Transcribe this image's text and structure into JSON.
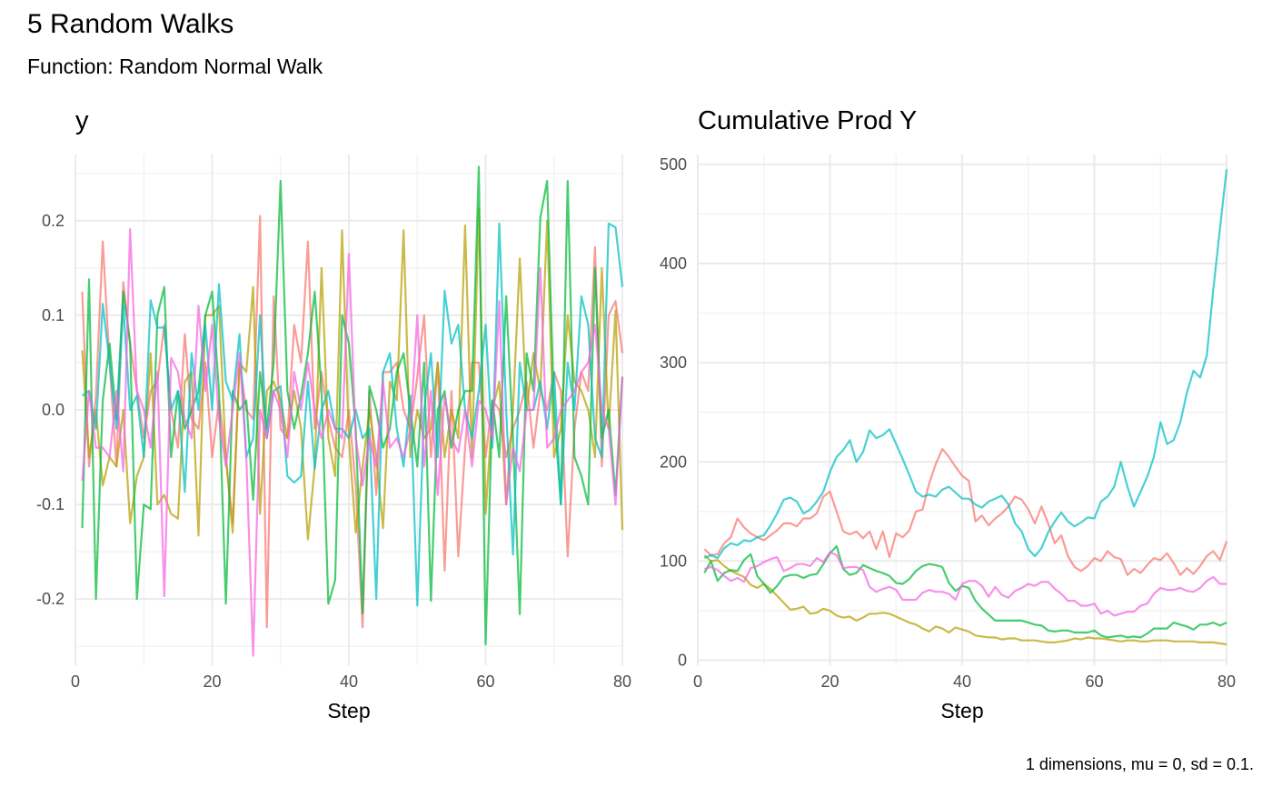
{
  "header": {
    "title": "5 Random Walks",
    "subtitle": "Function: Random Normal Walk",
    "caption": "1 dimensions, mu = 0, sd = 0.1."
  },
  "chart_data": [
    {
      "type": "line",
      "title": "y",
      "xlabel": "Step",
      "ylabel": "",
      "xlim": [
        0,
        80
      ],
      "ylim": [
        -0.27,
        0.27
      ],
      "x_ticks": [
        0,
        20,
        40,
        60,
        80
      ],
      "x_tick_labels": [
        "0",
        "20",
        "40",
        "60",
        "80"
      ],
      "y_ticks": [
        -0.2,
        -0.1,
        0.0,
        0.1,
        0.2
      ],
      "y_tick_labels": [
        "-0.2",
        "-0.1",
        "0.0",
        "0.1",
        "0.2"
      ],
      "grid": true,
      "legend": "none",
      "series": [
        {
          "color": "#F8766D",
          "x_start": 1,
          "values": [
            0.125,
            -0.06,
            0.015,
            0.178,
            0.05,
            -0.06,
            0.135,
            0.07,
            0.02,
            -0.03,
            0.02,
            0.03,
            0.09,
            0.0,
            -0.04,
            0.08,
            -0.01,
            -0.02,
            0.05,
            -0.05,
            0.01,
            -0.05,
            -0.12,
            0.05,
            0.0,
            -0.01,
            0.205,
            -0.23,
            0.12,
            -0.02,
            -0.03,
            0.09,
            0.05,
            0.178,
            -0.02,
            0.04,
            -0.01,
            -0.04,
            -0.05,
            0.0,
            -0.08,
            -0.23,
            0.02,
            -0.09,
            0.04,
            0.04,
            0.05,
            0.0,
            -0.02,
            0.035,
            0.1,
            -0.05,
            0.05,
            -0.17,
            0.02,
            -0.155,
            -0.04,
            0.05,
            0.05,
            -0.05,
            0.01,
            0.0,
            -0.05,
            -0.02,
            0.0,
            0.03,
            -0.04,
            0.02,
            0.0,
            0.04,
            0.02,
            -0.155,
            -0.02,
            0.04,
            0.02,
            0.172,
            -0.06,
            0.1,
            0.115,
            0.06
          ]
        },
        {
          "color": "#B79F00",
          "x_start": 1,
          "values": [
            0.063,
            -0.05,
            0.0,
            -0.08,
            -0.05,
            -0.06,
            0.0,
            -0.12,
            -0.07,
            -0.05,
            0.06,
            -0.1,
            -0.09,
            -0.11,
            -0.115,
            0.03,
            0.04,
            -0.133,
            0.1,
            0.1,
            0.11,
            -0.05,
            -0.13,
            0.05,
            0.04,
            0.13,
            -0.11,
            0.02,
            0.03,
            0.01,
            -0.03,
            0.02,
            -0.02,
            -0.137,
            -0.06,
            0.15,
            -0.03,
            -0.07,
            0.19,
            -0.03,
            -0.13,
            -0.06,
            0.0,
            -0.05,
            -0.125,
            0.03,
            0.01,
            0.19,
            -0.05,
            0.0,
            -0.03,
            -0.02,
            0.05,
            -0.05,
            0.0,
            -0.03,
            0.195,
            -0.05,
            0.213,
            -0.11,
            0.0,
            0.03,
            -0.1,
            0.0,
            0.16,
            0.0,
            0.06,
            0.02,
            0.2,
            -0.05,
            -0.02,
            0.1,
            0.03,
            0.02,
            0.0,
            -0.05,
            0.15,
            -0.02,
            0.105,
            -0.127
          ]
        },
        {
          "color": "#00BA38",
          "x_start": 1,
          "values": [
            -0.125,
            0.138,
            -0.2,
            0.01,
            0.07,
            -0.01,
            0.125,
            0.07,
            -0.2,
            -0.1,
            -0.105,
            0.1,
            0.13,
            -0.05,
            0.02,
            -0.02,
            0.0,
            0.02,
            0.1,
            0.125,
            0.02,
            -0.205,
            0.02,
            0.0,
            0.01,
            -0.095,
            0.04,
            -0.02,
            0.05,
            0.242,
            0.02,
            -0.02,
            0.015,
            0.06,
            0.125,
            0.02,
            -0.205,
            -0.18,
            0.1,
            0.07,
            -0.02,
            -0.215,
            0.025,
            0.0,
            -0.04,
            -0.02,
            0.04,
            0.06,
            0.0,
            -0.06,
            0.05,
            -0.202,
            0.0,
            0.02,
            -0.04,
            0.0,
            0.02,
            0.02,
            0.257,
            -0.248,
            0.01,
            -0.05,
            0.12,
            -0.03,
            -0.216,
            0.06,
            0.02,
            0.203,
            0.242,
            0.0,
            -0.1,
            0.242,
            -0.05,
            -0.07,
            -0.1,
            0.15,
            -0.03,
            0.0,
            -0.09,
            0.035
          ]
        },
        {
          "color": "#00BFC4",
          "x_start": 1,
          "values": [
            0.015,
            0.02,
            -0.02,
            0.112,
            0.05,
            -0.02,
            0.11,
            0.0,
            0.015,
            -0.05,
            0.116,
            0.087,
            0.087,
            0.0,
            0.02,
            -0.087,
            0.06,
            0.0,
            0.09,
            0.0,
            0.133,
            0.03,
            0.01,
            0.08,
            -0.05,
            -0.03,
            0.1,
            -0.03,
            0.02,
            0.025,
            -0.07,
            -0.077,
            -0.07,
            0.03,
            -0.062,
            0.0,
            0.02,
            -0.02,
            -0.02,
            -0.03,
            0.0,
            -0.03,
            -0.02,
            -0.2,
            0.04,
            0.06,
            -0.02,
            -0.06,
            0.015,
            -0.207,
            0.0,
            0.06,
            -0.05,
            0.126,
            0.07,
            0.09,
            0.0,
            -0.03,
            0.02,
            0.09,
            -0.04,
            0.197,
            0.0,
            -0.153,
            0.05,
            0.0,
            0.0,
            0.03,
            -0.02,
            0.04,
            -0.1,
            0.05,
            0.0,
            0.12,
            0.09,
            -0.03,
            -0.05,
            0.197,
            0.193,
            0.13
          ]
        },
        {
          "color": "#F564E3",
          "x_start": 1,
          "values": [
            -0.075,
            0.02,
            -0.04,
            -0.04,
            -0.05,
            0.02,
            -0.065,
            0.191,
            0.02,
            0.0,
            -0.04,
            0.04,
            -0.197,
            0.055,
            0.04,
            -0.01,
            -0.03,
            0.11,
            0.02,
            0.09,
            -0.01,
            -0.06,
            0.0,
            0.06,
            -0.05,
            -0.26,
            0.0,
            -0.03,
            0.02,
            0.0,
            -0.05,
            0.04,
            0.0,
            0.05,
            0.0,
            -0.03,
            0.0,
            -0.02,
            -0.03,
            0.165,
            -0.03,
            -0.08,
            -0.03,
            -0.06,
            0.03,
            -0.04,
            -0.03,
            -0.05,
            -0.02,
            0.1,
            -0.06,
            0.02,
            -0.09,
            0.015,
            -0.03,
            -0.045,
            0.0,
            -0.06,
            0.01,
            0.0,
            -0.03,
            0.115,
            -0.1,
            -0.04,
            -0.065,
            0.0,
            0.0,
            0.15,
            -0.04,
            -0.03,
            0.0,
            0.01,
            0.02,
            0.04,
            0.05,
            0.09,
            0.0,
            -0.02,
            -0.1,
            0.035
          ]
        }
      ]
    },
    {
      "type": "line",
      "title": "Cumulative Prod Y",
      "xlabel": "Step",
      "ylabel": "",
      "xlim": [
        0,
        80
      ],
      "ylim": [
        -5,
        510
      ],
      "x_ticks": [
        0,
        20,
        40,
        60,
        80
      ],
      "x_tick_labels": [
        "0",
        "20",
        "40",
        "60",
        "80"
      ],
      "y_ticks": [
        0,
        100,
        200,
        300,
        400,
        500
      ],
      "y_tick_labels": [
        "0",
        "100",
        "200",
        "300",
        "400",
        "500"
      ],
      "grid": true,
      "legend": "none",
      "series": [
        {
          "color": "#F8766D",
          "x_start": 1,
          "values": [
            112,
            106,
            107,
            118,
            124,
            143,
            134,
            128,
            124,
            121,
            126,
            131,
            138,
            138,
            135,
            143,
            143,
            148,
            165,
            170,
            150,
            130,
            127,
            130,
            123,
            130,
            112,
            130,
            104,
            128,
            124,
            131,
            150,
            152,
            178,
            198,
            213,
            205,
            195,
            186,
            181,
            140,
            146,
            136,
            143,
            148,
            155,
            165,
            162,
            152,
            138,
            155,
            138,
            118,
            126,
            105,
            94,
            90,
            95,
            103,
            100,
            110,
            104,
            102,
            86,
            92,
            88,
            96,
            103,
            101,
            108,
            98,
            86,
            93,
            87,
            95,
            105,
            110,
            101,
            120
          ]
        },
        {
          "color": "#B79F00",
          "x_start": 1,
          "values": [
            106,
            100,
            101,
            95,
            90,
            87,
            84,
            76,
            73,
            77,
            72,
            65,
            58,
            51,
            52,
            54,
            47,
            48,
            52,
            50,
            45,
            43,
            44,
            40,
            43,
            47,
            47,
            48,
            47,
            44,
            41,
            38,
            36,
            32,
            29,
            34,
            32,
            28,
            33,
            31,
            29,
            25,
            24,
            23,
            23,
            21,
            22,
            22,
            20,
            20,
            20,
            19,
            18,
            18,
            19,
            20,
            22,
            21,
            23,
            22,
            22,
            21,
            20,
            19,
            20,
            20,
            19,
            19,
            20,
            20,
            20,
            19,
            19,
            19,
            19,
            18,
            18,
            18,
            17,
            16
          ]
        },
        {
          "color": "#00BA38",
          "x_start": 1,
          "values": [
            88,
            100,
            80,
            88,
            91,
            90,
            101,
            107,
            85,
            77,
            68,
            75,
            84,
            86,
            86,
            83,
            86,
            87,
            97,
            108,
            115,
            92,
            86,
            88,
            96,
            93,
            90,
            88,
            85,
            78,
            77,
            82,
            90,
            95,
            97,
            96,
            94,
            78,
            70,
            75,
            73,
            60,
            52,
            46,
            40,
            40,
            40,
            40,
            40,
            38,
            36,
            35,
            30,
            29,
            30,
            30,
            28,
            28,
            28,
            30,
            25,
            23,
            24,
            25,
            23,
            24,
            23,
            27,
            32,
            32,
            32,
            38,
            36,
            34,
            31,
            36,
            36,
            38,
            35,
            38
          ]
        },
        {
          "color": "#00BFC4",
          "x_start": 1,
          "values": [
            103,
            106,
            103,
            113,
            118,
            116,
            121,
            120,
            124,
            126,
            136,
            148,
            162,
            164,
            160,
            148,
            152,
            160,
            170,
            190,
            205,
            212,
            222,
            200,
            210,
            232,
            224,
            227,
            233,
            218,
            203,
            187,
            170,
            165,
            167,
            165,
            172,
            175,
            169,
            163,
            163,
            157,
            154,
            160,
            163,
            166,
            157,
            138,
            130,
            112,
            105,
            113,
            129,
            140,
            149,
            140,
            135,
            139,
            144,
            143,
            160,
            165,
            175,
            200,
            175,
            155,
            170,
            185,
            205,
            240,
            218,
            222,
            240,
            270,
            292,
            285,
            307,
            374,
            435,
            495
          ]
        },
        {
          "color": "#F564E3",
          "x_start": 1,
          "values": [
            92,
            94,
            91,
            85,
            80,
            83,
            79,
            93,
            95,
            99,
            102,
            104,
            90,
            93,
            97,
            97,
            95,
            103,
            99,
            109,
            106,
            93,
            94,
            94,
            91,
            74,
            69,
            72,
            74,
            71,
            61,
            61,
            61,
            68,
            71,
            69,
            69,
            67,
            61,
            77,
            80,
            80,
            75,
            64,
            74,
            66,
            63,
            70,
            73,
            77,
            75,
            79,
            79,
            72,
            67,
            60,
            60,
            55,
            55,
            57,
            47,
            50,
            45,
            47,
            49,
            49,
            55,
            57,
            67,
            73,
            71,
            71,
            73,
            70,
            69,
            73,
            80,
            84,
            77,
            77
          ]
        }
      ]
    }
  ]
}
